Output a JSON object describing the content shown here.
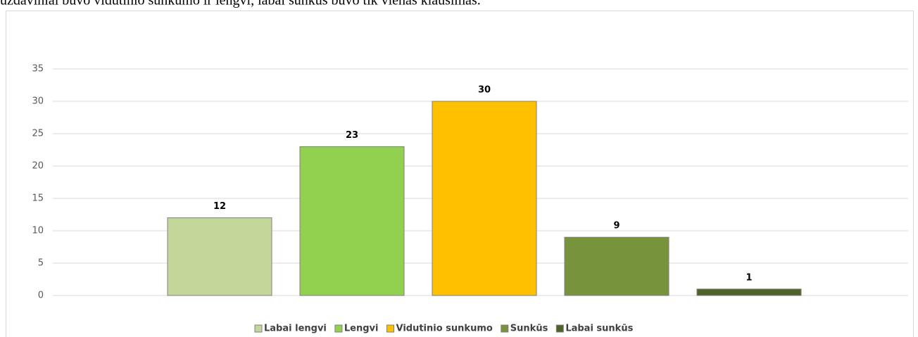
{
  "caption": "uždaviniai buvo vidutinio sunkumo ir lengvi, labai sunkus buvo tik vienas klausimas.",
  "chart_data": {
    "type": "bar",
    "categories": [
      "Labai lengvi",
      "Lengvi",
      "Vidutinio sunkumo",
      "Sunkūs",
      "Labai sunkūs"
    ],
    "values": [
      12,
      23,
      30,
      9,
      1
    ],
    "colors": [
      "#c4d79b",
      "#92d050",
      "#ffc000",
      "#77933c",
      "#4f6228"
    ],
    "ylim": [
      0,
      35
    ],
    "yticks": [
      0,
      5,
      10,
      15,
      20,
      25,
      30,
      35
    ],
    "grid": true,
    "legend": "bottom"
  }
}
